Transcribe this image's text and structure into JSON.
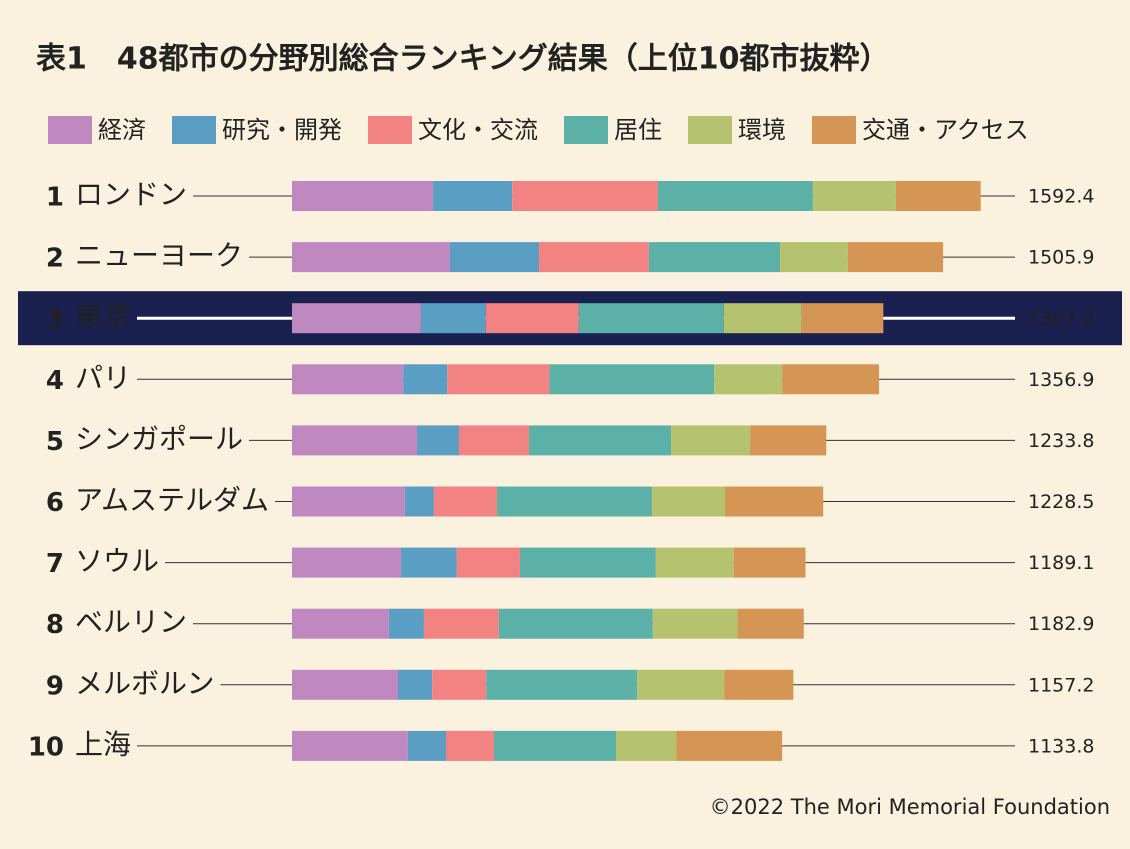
{
  "chart_data": {
    "type": "stacked-bar",
    "title": "表1　48都市の分野別総合ランキング結果（上位10都市抜粋）",
    "ranks": [
      1,
      2,
      3,
      4,
      5,
      6,
      7,
      8,
      9,
      10
    ],
    "categories": [
      "ロンドン",
      "ニューヨーク",
      "東京",
      "パリ",
      "シンガポール",
      "アムステルダム",
      "ソウル",
      "ベルリン",
      "メルボルン",
      "上海"
    ],
    "totals": [
      1592.4,
      1505.9,
      1367.2,
      1356.9,
      1233.8,
      1228.5,
      1189.1,
      1182.9,
      1157.2,
      1133.8
    ],
    "highlight": 3,
    "series": [
      {
        "name": "経済",
        "color": "#c088c0",
        "values": [
          326,
          365,
          298,
          257,
          289,
          261,
          252,
          224,
          245,
          268
        ]
      },
      {
        "name": "研究・開発",
        "color": "#5b9ec4",
        "values": [
          183,
          206,
          150,
          102,
          97,
          67,
          129,
          81,
          79,
          88
        ]
      },
      {
        "name": "文化・交流",
        "color": "#f38383",
        "values": [
          337,
          254,
          215,
          236,
          162,
          146,
          146,
          173,
          125,
          111
        ]
      },
      {
        "name": "居住",
        "color": "#5bb0a8",
        "values": [
          358,
          303,
          335,
          381,
          328,
          358,
          314,
          356,
          349,
          282
        ]
      },
      {
        "name": "環境",
        "color": "#b5c26e",
        "values": [
          192,
          157,
          180,
          157,
          183,
          169,
          180,
          196,
          201,
          139
        ]
      },
      {
        "name": "交通・アクセス",
        "color": "#d59555",
        "values": [
          196,
          220,
          189,
          224,
          176,
          227,
          166,
          153,
          160,
          245
        ]
      }
    ],
    "source": "©2022 The Mori Memorial Foundation"
  }
}
